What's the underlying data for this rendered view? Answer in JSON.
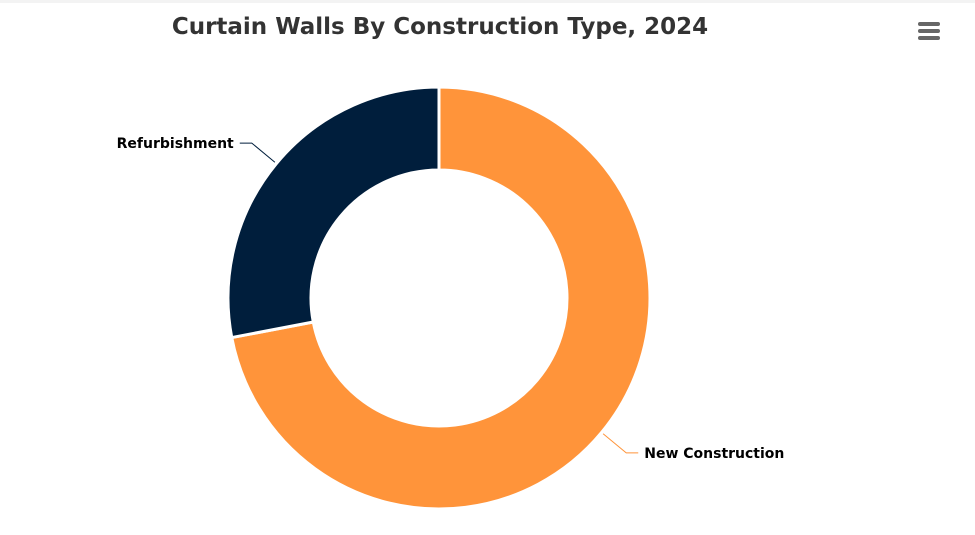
{
  "title": "Curtain Walls By Construction Type, 2024",
  "menu": {
    "icon": "hamburger-menu-icon"
  },
  "colors": {
    "new_construction": "#FF943A",
    "refurbishment": "#001E3C"
  },
  "chart_data": {
    "type": "pie",
    "donut": true,
    "title": "Curtain Walls By Construction Type, 2024",
    "categories": [
      "New Construction",
      "Refurbishment"
    ],
    "values": [
      72,
      28
    ],
    "unit": "%",
    "legend": "none",
    "data_labels": "outside with connectors"
  }
}
